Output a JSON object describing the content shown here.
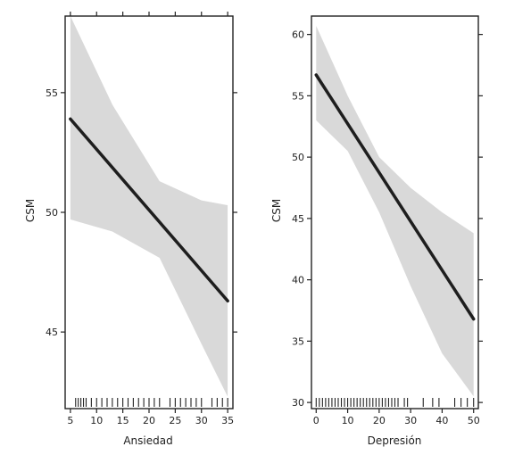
{
  "chart_data": [
    {
      "type": "line",
      "xlabel": "Ansiedad",
      "ylabel": "CSM",
      "xlim": [
        4,
        36
      ],
      "ylim": [
        41.8,
        58.2
      ],
      "xticks": [
        5,
        10,
        15,
        20,
        25,
        30,
        35
      ],
      "yticks": [
        45,
        50,
        55
      ],
      "fit": {
        "x": [
          5,
          35
        ],
        "y": [
          53.9,
          46.3
        ]
      },
      "ci_band": {
        "x": [
          5,
          13,
          22,
          26,
          30,
          35
        ],
        "lower": [
          49.7,
          49.2,
          48.1,
          46.3,
          44.5,
          42.3
        ],
        "upper": [
          58.2,
          54.5,
          51.3,
          50.9,
          50.5,
          50.3
        ]
      },
      "rug": [
        6,
        6.5,
        7,
        7.5,
        8,
        9,
        10,
        11,
        12,
        13,
        14,
        15,
        16,
        17,
        18,
        19,
        20,
        21,
        22,
        24,
        25,
        26,
        27,
        28,
        29,
        30,
        32,
        33,
        34,
        35
      ],
      "line_color": "#1e1e1e",
      "band_color": "#d9d9d9"
    },
    {
      "type": "line",
      "xlabel": "Depresión",
      "ylabel": "CSM",
      "xlim": [
        -1.5,
        51.5
      ],
      "ylim": [
        29.5,
        61.5
      ],
      "xticks": [
        0,
        10,
        20,
        30,
        40,
        50
      ],
      "yticks": [
        30,
        35,
        40,
        45,
        50,
        55,
        60
      ],
      "fit": {
        "x": [
          0,
          50
        ],
        "y": [
          56.7,
          36.8
        ]
      },
      "ci_band": {
        "x": [
          0,
          10,
          20,
          30,
          40,
          50
        ],
        "lower": [
          53.0,
          50.5,
          45.5,
          39.5,
          34.0,
          30.5
        ],
        "upper": [
          60.7,
          55.0,
          50.0,
          47.5,
          45.5,
          43.8
        ]
      },
      "rug": [
        0,
        1,
        2,
        3,
        4,
        5,
        6,
        7,
        8,
        9,
        10,
        11,
        12,
        13,
        14,
        15,
        16,
        17,
        18,
        19,
        20,
        21,
        22,
        23,
        24,
        25,
        26,
        28,
        29,
        34,
        37,
        39,
        44,
        46,
        48,
        50
      ],
      "line_color": "#1e1e1e",
      "band_color": "#d9d9d9"
    }
  ]
}
